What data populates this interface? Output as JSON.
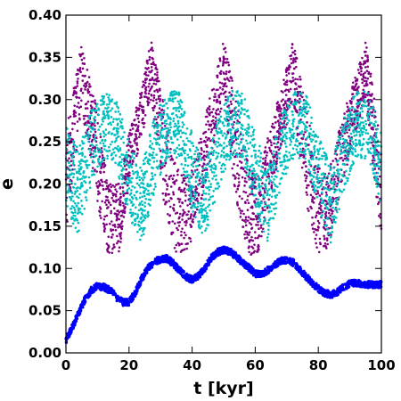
{
  "chart_data": {
    "type": "scatter",
    "title": "",
    "xlabel": "t [kyr]",
    "ylabel": "e",
    "xlim": [
      0,
      100
    ],
    "ylim": [
      0,
      0.4
    ],
    "xticks": [
      0,
      20,
      40,
      60,
      80,
      100
    ],
    "xtick_labels": [
      "0",
      "20",
      "40",
      "60",
      "80",
      "100"
    ],
    "yticks": [
      0,
      0.05,
      0.1,
      0.15,
      0.2,
      0.25,
      0.3,
      0.35,
      0.4
    ],
    "ytick_labels": [
      "0.00",
      "0.05",
      "0.10",
      "0.15",
      "0.20",
      "0.25",
      "0.30",
      "0.35",
      "0.40"
    ],
    "grid": false,
    "legend": "none",
    "series": [
      {
        "color": "#800080",
        "marker": "dot",
        "envelope_x": [
          0,
          5,
          10,
          13,
          17,
          20,
          23,
          27,
          31,
          35,
          39,
          43,
          46,
          50,
          54,
          58,
          61,
          65,
          68,
          72,
          76,
          80,
          83,
          87,
          91,
          95,
          98,
          100
        ],
        "envelope_ymin": [
          0.14,
          0.29,
          0.18,
          0.115,
          0.12,
          0.2,
          0.24,
          0.3,
          0.18,
          0.115,
          0.12,
          0.18,
          0.23,
          0.3,
          0.18,
          0.115,
          0.12,
          0.19,
          0.24,
          0.3,
          0.18,
          0.115,
          0.12,
          0.19,
          0.25,
          0.3,
          0.2,
          0.13
        ],
        "envelope_ymax": [
          0.28,
          0.365,
          0.29,
          0.21,
          0.2,
          0.26,
          0.3,
          0.37,
          0.3,
          0.22,
          0.21,
          0.26,
          0.31,
          0.37,
          0.3,
          0.22,
          0.21,
          0.27,
          0.31,
          0.37,
          0.3,
          0.22,
          0.21,
          0.27,
          0.32,
          0.37,
          0.3,
          0.24
        ]
      },
      {
        "color": "#00bfbf",
        "marker": "dot",
        "envelope_x": [
          0,
          4,
          8,
          12,
          16,
          20,
          24,
          28,
          32,
          36,
          40,
          44,
          48,
          52,
          56,
          60,
          64,
          68,
          72,
          76,
          80,
          84,
          88,
          92,
          96,
          100
        ],
        "envelope_ymin": [
          0.17,
          0.14,
          0.2,
          0.23,
          0.22,
          0.16,
          0.13,
          0.19,
          0.23,
          0.23,
          0.17,
          0.13,
          0.19,
          0.23,
          0.23,
          0.17,
          0.13,
          0.19,
          0.23,
          0.23,
          0.17,
          0.13,
          0.19,
          0.23,
          0.23,
          0.17
        ],
        "envelope_ymax": [
          0.27,
          0.24,
          0.29,
          0.31,
          0.3,
          0.25,
          0.22,
          0.28,
          0.31,
          0.31,
          0.26,
          0.22,
          0.28,
          0.31,
          0.31,
          0.26,
          0.22,
          0.28,
          0.31,
          0.31,
          0.26,
          0.22,
          0.28,
          0.31,
          0.31,
          0.26
        ]
      },
      {
        "color": "#0000ff",
        "marker": "dot",
        "x": [
          0,
          2,
          4,
          6,
          8,
          10,
          12,
          14,
          16,
          18,
          20,
          22,
          24,
          26,
          28,
          30,
          32,
          34,
          36,
          38,
          40,
          42,
          44,
          46,
          48,
          50,
          52,
          54,
          56,
          58,
          60,
          62,
          64,
          66,
          68,
          70,
          72,
          74,
          76,
          78,
          80,
          82,
          84,
          86,
          88,
          90,
          92,
          94,
          96,
          98,
          100
        ],
        "y": [
          0.015,
          0.03,
          0.047,
          0.063,
          0.074,
          0.079,
          0.078,
          0.074,
          0.066,
          0.06,
          0.06,
          0.071,
          0.088,
          0.1,
          0.108,
          0.111,
          0.112,
          0.106,
          0.098,
          0.09,
          0.087,
          0.091,
          0.1,
          0.112,
          0.119,
          0.122,
          0.12,
          0.114,
          0.107,
          0.101,
          0.094,
          0.093,
          0.098,
          0.104,
          0.109,
          0.11,
          0.107,
          0.099,
          0.091,
          0.083,
          0.076,
          0.071,
          0.069,
          0.072,
          0.078,
          0.082,
          0.083,
          0.082,
          0.081,
          0.081,
          0.081
        ],
        "spread": 0.004
      }
    ]
  }
}
